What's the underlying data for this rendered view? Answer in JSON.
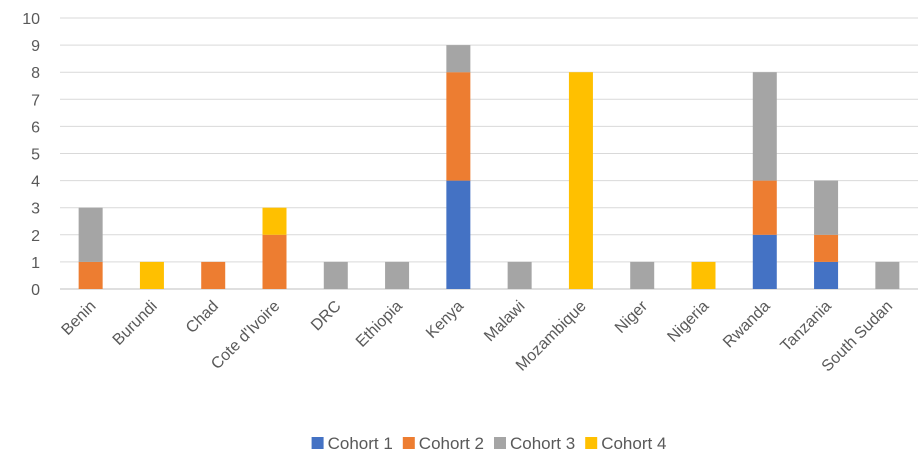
{
  "chart_data": {
    "type": "bar",
    "stacked": true,
    "categories": [
      "Benin",
      "Burundi",
      "Chad",
      "Cote d'Ivoire",
      "DRC",
      "Ethiopia",
      "Kenya",
      "Malawi",
      "Mozambique",
      "Niger",
      "Nigeria",
      "Rwanda",
      "Tanzania",
      "South Sudan"
    ],
    "series": [
      {
        "name": "Cohort 1",
        "color": "#4472C4",
        "values": [
          0,
          0,
          0,
          0,
          0,
          0,
          4,
          0,
          0,
          0,
          0,
          2,
          1,
          0
        ]
      },
      {
        "name": "Cohort 2",
        "color": "#ED7D31",
        "values": [
          1,
          0,
          1,
          2,
          0,
          0,
          4,
          0,
          0,
          0,
          0,
          2,
          1,
          0
        ]
      },
      {
        "name": "Cohort 3",
        "color": "#A5A5A5",
        "values": [
          2,
          0,
          0,
          0,
          1,
          1,
          1,
          1,
          0,
          1,
          0,
          4,
          2,
          1
        ]
      },
      {
        "name": "Cohort 4",
        "color": "#FFC000",
        "values": [
          0,
          1,
          0,
          1,
          0,
          0,
          0,
          0,
          8,
          0,
          1,
          0,
          0,
          0
        ]
      }
    ],
    "ylim": [
      0,
      10
    ],
    "yticks": [
      0,
      1,
      2,
      3,
      4,
      5,
      6,
      7,
      8,
      9,
      10
    ],
    "grid": true,
    "legend_position": "bottom",
    "title": "",
    "xlabel": "",
    "ylabel": ""
  }
}
